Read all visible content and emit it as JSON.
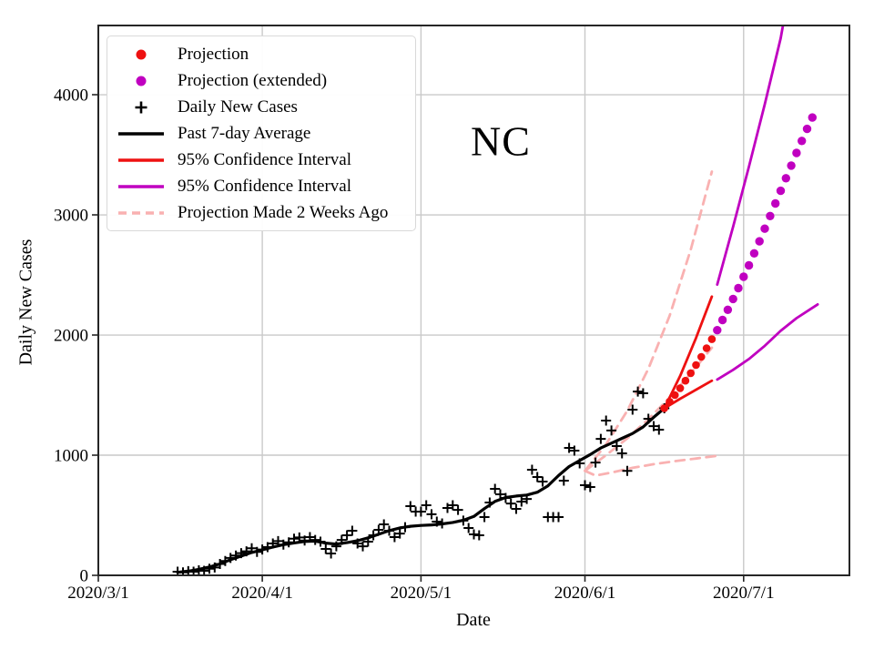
{
  "figure": {
    "title": "NC"
  },
  "colors": {
    "red": "#ee1111",
    "magenta": "#c000c0",
    "pink": "#f9b1b1",
    "black": "#000000",
    "grid": "#c9c9c9",
    "spine": "#262626",
    "background": "#ffffff"
  },
  "axes": {
    "x": {
      "label": "Date",
      "range": [
        "2020/3/1",
        "2020/7/21"
      ],
      "ticks": [
        {
          "label": "2020/3/1",
          "date": "2020/3/1",
          "grid": false
        },
        {
          "label": "2020/4/1",
          "date": "2020/4/1",
          "grid": true
        },
        {
          "label": "2020/5/1",
          "date": "2020/5/1",
          "grid": true
        },
        {
          "label": "2020/6/1",
          "date": "2020/6/1",
          "grid": true
        },
        {
          "label": "2020/7/1",
          "date": "2020/7/1",
          "grid": true
        }
      ]
    },
    "y": {
      "label": "Daily New Cases",
      "range": [
        0,
        4576
      ],
      "ticks": [
        {
          "label": "0",
          "value": 0,
          "grid": false
        },
        {
          "label": "1000",
          "value": 1000,
          "grid": true
        },
        {
          "label": "2000",
          "value": 2000,
          "grid": true
        },
        {
          "label": "3000",
          "value": 3000,
          "grid": true
        },
        {
          "label": "4000",
          "value": 4000,
          "grid": true
        }
      ]
    }
  },
  "legend": {
    "items": [
      {
        "label": "Projection",
        "marker": "dot",
        "color": "red"
      },
      {
        "label": "Projection (extended)",
        "marker": "dot",
        "color": "magenta"
      },
      {
        "label": "Daily New Cases",
        "marker": "plus",
        "color": "black"
      },
      {
        "label": "Past 7-day Average",
        "marker": "line",
        "color": "black"
      },
      {
        "label": "95% Confidence Interval",
        "marker": "line",
        "color": "red"
      },
      {
        "label": "95% Confidence Interval",
        "marker": "line",
        "color": "magenta"
      },
      {
        "label": "Projection Made 2 Weeks Ago",
        "marker": "dashed-line",
        "color": "pink"
      }
    ]
  },
  "chart_data": {
    "type": "line",
    "title": "NC",
    "xlabel": "Date",
    "ylabel": "Daily New Cases",
    "x_format": "date",
    "grid": true,
    "legend_position": "upper-left",
    "series": [
      {
        "id": "proj2wk-upper",
        "name": "Projection Made 2 Weeks Ago (upper 95% bound)",
        "kind": "line",
        "color": "pink",
        "dash": true,
        "points": [
          [
            "2020/6/1",
            870
          ],
          [
            "2020/6/5",
            1090
          ],
          [
            "2020/6/9",
            1370
          ],
          [
            "2020/6/13",
            1720
          ],
          [
            "2020/6/17",
            2160
          ],
          [
            "2020/6/21",
            2710
          ],
          [
            "2020/6/25",
            3360
          ]
        ]
      },
      {
        "id": "proj2wk-center",
        "name": "Projection Made 2 Weeks Ago (central)",
        "kind": "line",
        "color": "pink",
        "dash": true,
        "points": [
          [
            "2020/6/1",
            870
          ],
          [
            "2020/6/5",
            1000
          ],
          [
            "2020/6/9",
            1140
          ],
          [
            "2020/6/13",
            1300
          ],
          [
            "2020/6/17",
            1480
          ],
          [
            "2020/6/21",
            1680
          ],
          [
            "2020/6/25",
            1894
          ]
        ]
      },
      {
        "id": "proj2wk-lower",
        "name": "Projection Made 2 Weeks Ago (lower 95% bound)",
        "kind": "line",
        "color": "pink",
        "dash": true,
        "points": [
          [
            "2020/6/1",
            870
          ],
          [
            "2020/6/3",
            830
          ],
          [
            "2020/6/6",
            855
          ],
          [
            "2020/6/10",
            895
          ],
          [
            "2020/6/14",
            925
          ],
          [
            "2020/6/18",
            950
          ],
          [
            "2020/6/22",
            972
          ],
          [
            "2020/6/26",
            995
          ]
        ]
      },
      {
        "id": "ci-red-upper",
        "name": "95% Confidence Interval (red, upper)",
        "kind": "line",
        "color": "red",
        "dash": false,
        "points": [
          [
            "2020/6/16",
            1390
          ],
          [
            "2020/6/19",
            1660
          ],
          [
            "2020/6/22",
            1975
          ],
          [
            "2020/6/25",
            2320
          ]
        ]
      },
      {
        "id": "ci-red-lower",
        "name": "95% Confidence Interval (red, lower)",
        "kind": "line",
        "color": "red",
        "dash": false,
        "points": [
          [
            "2020/6/16",
            1390
          ],
          [
            "2020/6/19",
            1470
          ],
          [
            "2020/6/22",
            1545
          ],
          [
            "2020/6/25",
            1620
          ]
        ]
      },
      {
        "id": "ci-magenta-upper",
        "name": "95% Confidence Interval (magenta, upper)",
        "kind": "line",
        "color": "magenta",
        "dash": false,
        "points": [
          [
            "2020/6/26",
            2420
          ],
          [
            "2020/6/29",
            2900
          ],
          [
            "2020/7/2",
            3400
          ],
          [
            "2020/7/5",
            3920
          ],
          [
            "2020/7/8",
            4470
          ],
          [
            "2020/7/10",
            4960
          ]
        ]
      },
      {
        "id": "ci-magenta-lower",
        "name": "95% Confidence Interval (magenta, lower)",
        "kind": "line",
        "color": "magenta",
        "dash": false,
        "points": [
          [
            "2020/6/26",
            1630
          ],
          [
            "2020/6/29",
            1710
          ],
          [
            "2020/7/2",
            1800
          ],
          [
            "2020/7/5",
            1910
          ],
          [
            "2020/7/8",
            2035
          ],
          [
            "2020/7/11",
            2140
          ],
          [
            "2020/7/15",
            2255
          ]
        ]
      },
      {
        "id": "avg7",
        "name": "Past 7-day Average",
        "kind": "line",
        "color": "black",
        "dash": false,
        "points": [
          [
            "2020/3/16",
            25
          ],
          [
            "2020/3/18",
            35
          ],
          [
            "2020/3/20",
            50
          ],
          [
            "2020/3/22",
            70
          ],
          [
            "2020/3/24",
            95
          ],
          [
            "2020/3/26",
            130
          ],
          [
            "2020/3/28",
            160
          ],
          [
            "2020/3/30",
            190
          ],
          [
            "2020/4/1",
            212
          ],
          [
            "2020/4/3",
            235
          ],
          [
            "2020/4/5",
            255
          ],
          [
            "2020/4/7",
            270
          ],
          [
            "2020/4/9",
            282
          ],
          [
            "2020/4/11",
            285
          ],
          [
            "2020/4/13",
            268
          ],
          [
            "2020/4/15",
            260
          ],
          [
            "2020/4/17",
            272
          ],
          [
            "2020/4/19",
            288
          ],
          [
            "2020/4/21",
            312
          ],
          [
            "2020/4/23",
            342
          ],
          [
            "2020/4/25",
            372
          ],
          [
            "2020/4/27",
            395
          ],
          [
            "2020/4/29",
            408
          ],
          [
            "2020/5/1",
            415
          ],
          [
            "2020/5/3",
            420
          ],
          [
            "2020/5/5",
            428
          ],
          [
            "2020/5/7",
            440
          ],
          [
            "2020/5/9",
            458
          ],
          [
            "2020/5/11",
            490
          ],
          [
            "2020/5/13",
            555
          ],
          [
            "2020/5/15",
            615
          ],
          [
            "2020/5/17",
            648
          ],
          [
            "2020/5/19",
            660
          ],
          [
            "2020/5/21",
            668
          ],
          [
            "2020/5/23",
            692
          ],
          [
            "2020/5/25",
            745
          ],
          [
            "2020/5/27",
            830
          ],
          [
            "2020/5/29",
            905
          ],
          [
            "2020/5/31",
            955
          ],
          [
            "2020/6/2",
            1005
          ],
          [
            "2020/6/4",
            1060
          ],
          [
            "2020/6/6",
            1100
          ],
          [
            "2020/6/8",
            1140
          ],
          [
            "2020/6/10",
            1180
          ],
          [
            "2020/6/12",
            1235
          ],
          [
            "2020/6/14",
            1315
          ],
          [
            "2020/6/16",
            1390
          ]
        ]
      },
      {
        "id": "daily",
        "name": "Daily New Cases",
        "kind": "scatter",
        "marker": "plus",
        "color": "black",
        "points": [
          [
            "2020/3/16",
            30
          ],
          [
            "2020/3/17",
            25
          ],
          [
            "2020/3/18",
            35
          ],
          [
            "2020/3/19",
            30
          ],
          [
            "2020/3/20",
            42
          ],
          [
            "2020/3/21",
            38
          ],
          [
            "2020/3/22",
            55
          ],
          [
            "2020/3/23",
            65
          ],
          [
            "2020/3/24",
            95
          ],
          [
            "2020/3/25",
            120
          ],
          [
            "2020/3/26",
            145
          ],
          [
            "2020/3/27",
            165
          ],
          [
            "2020/3/28",
            185
          ],
          [
            "2020/3/29",
            200
          ],
          [
            "2020/3/30",
            225
          ],
          [
            "2020/3/31",
            195
          ],
          [
            "2020/4/1",
            215
          ],
          [
            "2020/4/2",
            235
          ],
          [
            "2020/4/3",
            265
          ],
          [
            "2020/4/4",
            285
          ],
          [
            "2020/4/5",
            255
          ],
          [
            "2020/4/6",
            275
          ],
          [
            "2020/4/7",
            305
          ],
          [
            "2020/4/8",
            315
          ],
          [
            "2020/4/9",
            290
          ],
          [
            "2020/4/10",
            318
          ],
          [
            "2020/4/11",
            295
          ],
          [
            "2020/4/12",
            280
          ],
          [
            "2020/4/13",
            220
          ],
          [
            "2020/4/14",
            182
          ],
          [
            "2020/4/15",
            242
          ],
          [
            "2020/4/16",
            295
          ],
          [
            "2020/4/17",
            333
          ],
          [
            "2020/4/18",
            371
          ],
          [
            "2020/4/19",
            265
          ],
          [
            "2020/4/20",
            242
          ],
          [
            "2020/4/21",
            280
          ],
          [
            "2020/4/22",
            333
          ],
          [
            "2020/4/23",
            379
          ],
          [
            "2020/4/24",
            424
          ],
          [
            "2020/4/25",
            371
          ],
          [
            "2020/4/26",
            318
          ],
          [
            "2020/4/27",
            348
          ],
          [
            "2020/4/28",
            401
          ],
          [
            "2020/4/29",
            576
          ],
          [
            "2020/4/30",
            530
          ],
          [
            "2020/5/1",
            530
          ],
          [
            "2020/5/2",
            583
          ],
          [
            "2020/5/3",
            508
          ],
          [
            "2020/5/4",
            447
          ],
          [
            "2020/5/5",
            432
          ],
          [
            "2020/5/6",
            561
          ],
          [
            "2020/5/7",
            583
          ],
          [
            "2020/5/8",
            545
          ],
          [
            "2020/5/9",
            455
          ],
          [
            "2020/5/10",
            394
          ],
          [
            "2020/5/11",
            341
          ],
          [
            "2020/5/12",
            333
          ],
          [
            "2020/5/13",
            485
          ],
          [
            "2020/5/14",
            606
          ],
          [
            "2020/5/15",
            720
          ],
          [
            "2020/5/16",
            674
          ],
          [
            "2020/5/17",
            644
          ],
          [
            "2020/5/18",
            598
          ],
          [
            "2020/5/19",
            553
          ],
          [
            "2020/5/20",
            614
          ],
          [
            "2020/5/21",
            636
          ],
          [
            "2020/5/22",
            879
          ],
          [
            "2020/5/23",
            818
          ],
          [
            "2020/5/24",
            780
          ],
          [
            "2020/5/25",
            485
          ],
          [
            "2020/5/26",
            485
          ],
          [
            "2020/5/27",
            485
          ],
          [
            "2020/5/28",
            788
          ],
          [
            "2020/5/29",
            1061
          ],
          [
            "2020/5/30",
            1038
          ],
          [
            "2020/5/31",
            932
          ],
          [
            "2020/6/1",
            750
          ],
          [
            "2020/6/2",
            735
          ],
          [
            "2020/6/3",
            939
          ],
          [
            "2020/6/4",
            1136
          ],
          [
            "2020/6/5",
            1288
          ],
          [
            "2020/6/6",
            1205
          ],
          [
            "2020/6/7",
            1076
          ],
          [
            "2020/6/8",
            1015
          ],
          [
            "2020/6/9",
            870
          ],
          [
            "2020/6/10",
            1379
          ],
          [
            "2020/6/11",
            1530
          ],
          [
            "2020/6/12",
            1515
          ],
          [
            "2020/6/13",
            1303
          ],
          [
            "2020/6/14",
            1242
          ],
          [
            "2020/6/15",
            1212
          ],
          [
            "2020/6/16",
            1390
          ]
        ]
      },
      {
        "id": "projection",
        "name": "Projection",
        "kind": "scatter",
        "marker": "dot",
        "color": "red",
        "points": [
          [
            "2020/6/16",
            1390
          ],
          [
            "2020/6/17",
            1445
          ],
          [
            "2020/6/18",
            1500
          ],
          [
            "2020/6/19",
            1558
          ],
          [
            "2020/6/20",
            1620
          ],
          [
            "2020/6/21",
            1683
          ],
          [
            "2020/6/22",
            1750
          ],
          [
            "2020/6/23",
            1818
          ],
          [
            "2020/6/24",
            1890
          ],
          [
            "2020/6/25",
            1965
          ]
        ]
      },
      {
        "id": "projection-extended",
        "name": "Projection (extended)",
        "kind": "scatter",
        "marker": "dot",
        "color": "magenta",
        "points": [
          [
            "2020/6/26",
            2040
          ],
          [
            "2020/6/27",
            2125
          ],
          [
            "2020/6/28",
            2210
          ],
          [
            "2020/6/29",
            2300
          ],
          [
            "2020/6/30",
            2390
          ],
          [
            "2020/7/1",
            2485
          ],
          [
            "2020/7/2",
            2580
          ],
          [
            "2020/7/3",
            2680
          ],
          [
            "2020/7/4",
            2780
          ],
          [
            "2020/7/5",
            2885
          ],
          [
            "2020/7/6",
            2990
          ],
          [
            "2020/7/7",
            3095
          ],
          [
            "2020/7/8",
            3200
          ],
          [
            "2020/7/9",
            3305
          ],
          [
            "2020/7/10",
            3410
          ],
          [
            "2020/7/11",
            3515
          ],
          [
            "2020/7/12",
            3615
          ],
          [
            "2020/7/13",
            3715
          ],
          [
            "2020/7/14",
            3810
          ]
        ]
      }
    ]
  }
}
